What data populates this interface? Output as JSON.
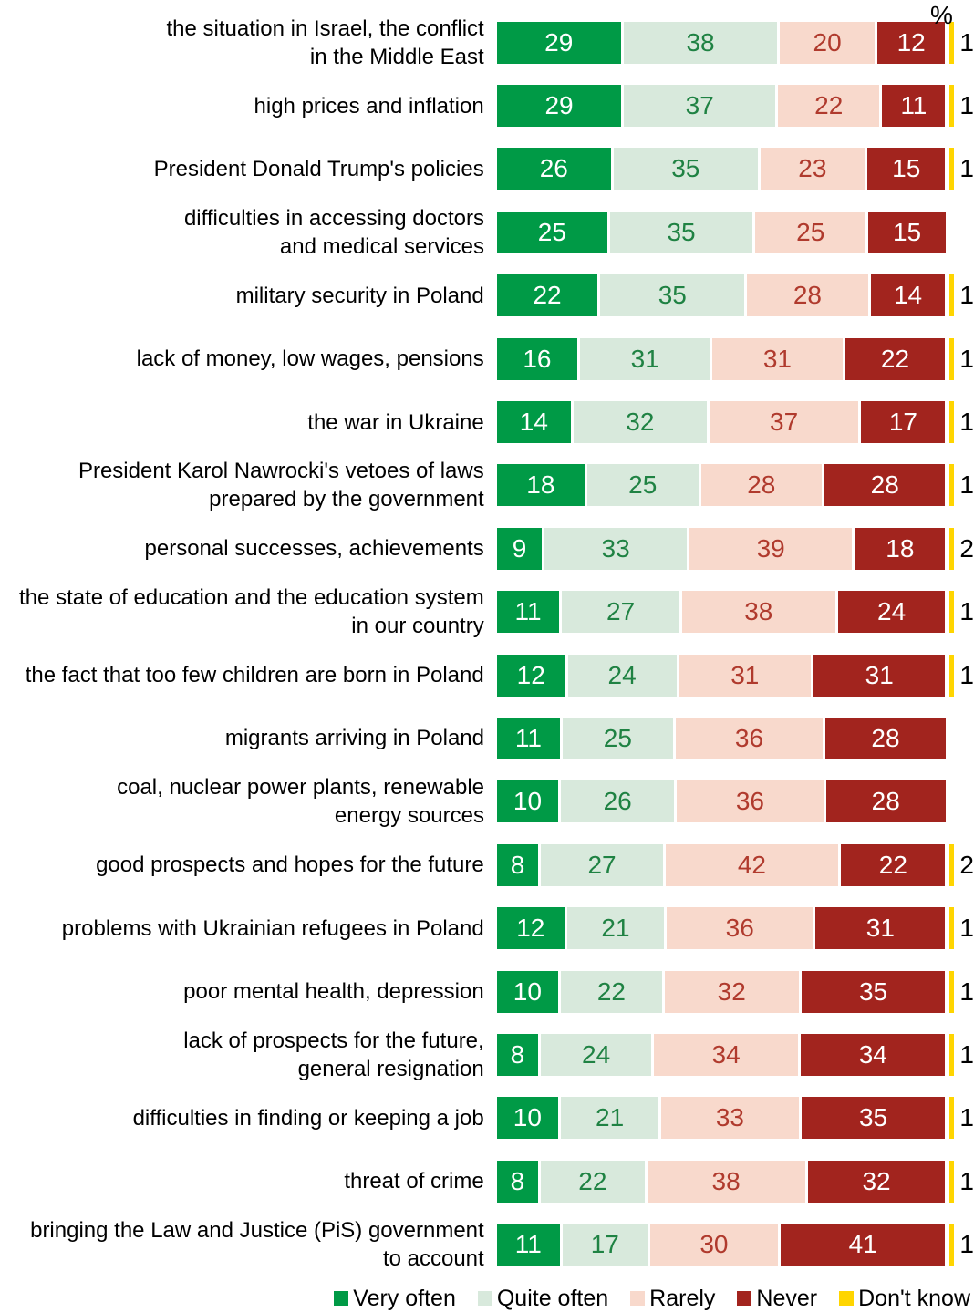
{
  "header": {
    "percent_label": "%"
  },
  "chart_data": {
    "type": "bar",
    "orientation": "horizontal-stacked",
    "unit": "%",
    "grid": false,
    "legend_position": "bottom",
    "categories": [
      "the situation in Israel, the conflict\nin the Middle East",
      "high prices and inflation",
      "President Donald Trump's policies",
      "difficulties in accessing doctors\nand medical services",
      "military security in Poland",
      "lack of money, low wages, pensions",
      "the war in Ukraine",
      "President Karol Nawrocki's vetoes of laws\nprepared by the government",
      "personal successes, achievements",
      "the state of education and the education system\nin our country",
      "the fact that too few children are born in Poland",
      "migrants arriving in Poland",
      "coal, nuclear power plants, renewable\nenergy sources",
      "good prospects and hopes for the future",
      "problems with Ukrainian refugees in Poland",
      "poor mental health, depression",
      "lack of prospects for the future,\ngeneral resignation",
      "difficulties in finding or keeping a job",
      "threat of crime",
      "bringing the Law and Justice (PiS) government\nto account"
    ],
    "series": [
      {
        "name": "Very often",
        "color": "#009A46",
        "values": [
          29,
          29,
          26,
          25,
          22,
          16,
          14,
          18,
          9,
          11,
          12,
          11,
          10,
          8,
          12,
          10,
          8,
          10,
          8,
          11
        ]
      },
      {
        "name": "Quite often",
        "color": "#D8E9DC",
        "values": [
          38,
          37,
          35,
          35,
          35,
          31,
          32,
          25,
          33,
          27,
          24,
          25,
          26,
          27,
          21,
          22,
          24,
          21,
          22,
          17
        ]
      },
      {
        "name": "Rarely",
        "color": "#F8D9CC",
        "values": [
          20,
          22,
          23,
          25,
          28,
          31,
          37,
          28,
          39,
          38,
          31,
          36,
          36,
          42,
          36,
          32,
          34,
          33,
          38,
          30
        ]
      },
      {
        "name": "Never",
        "color": "#A2241E",
        "values": [
          12,
          11,
          15,
          15,
          14,
          22,
          17,
          28,
          18,
          24,
          31,
          28,
          28,
          22,
          31,
          35,
          34,
          35,
          32,
          41
        ]
      },
      {
        "name": "Don't know",
        "color": "#FFD500",
        "values": [
          1,
          1,
          1,
          null,
          1,
          1,
          1,
          1,
          2,
          1,
          1,
          null,
          null,
          2,
          1,
          1,
          1,
          1,
          1,
          1
        ]
      }
    ],
    "legend": [
      "Very often",
      "Quite often",
      "Rarely",
      "Never",
      "Don't know"
    ]
  }
}
